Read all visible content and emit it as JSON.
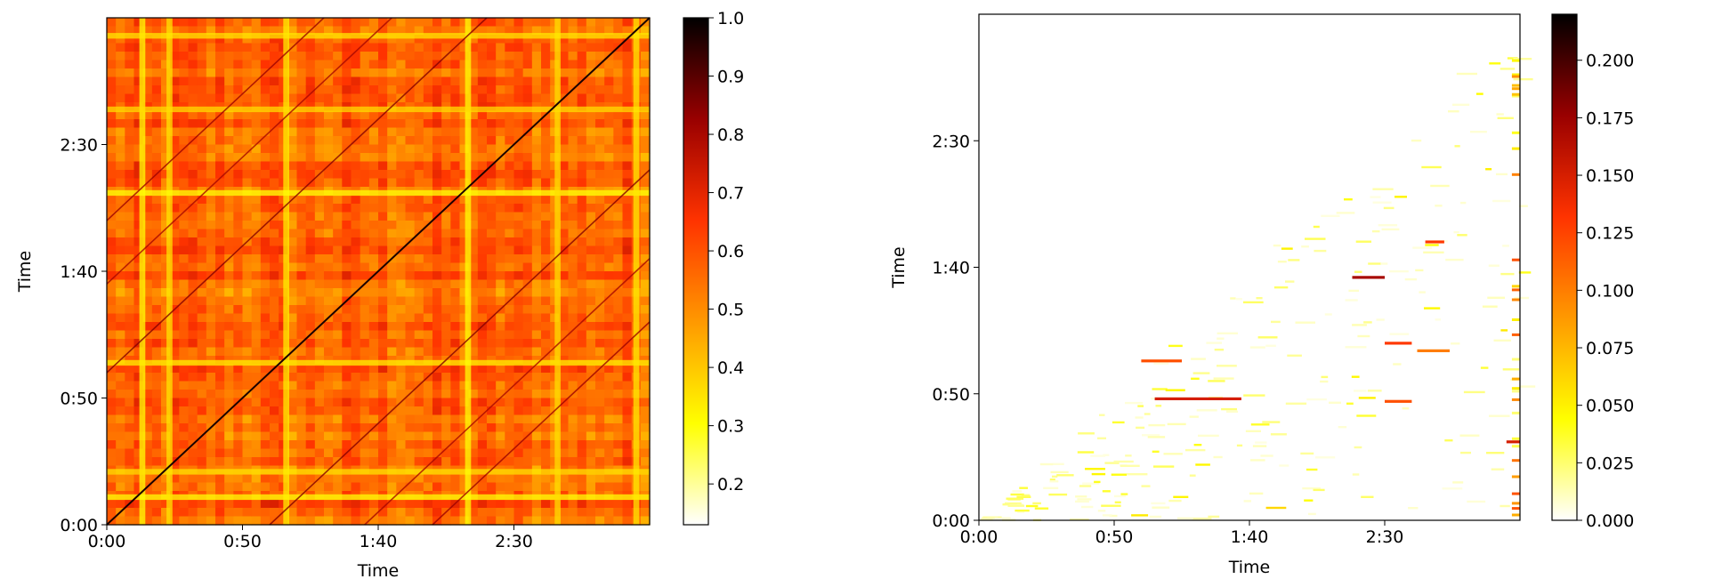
{
  "chart_data": [
    {
      "type": "heatmap",
      "title": "",
      "xlabel": "Time",
      "ylabel": "Time",
      "xlim": [
        0,
        200
      ],
      "ylim": [
        0,
        200
      ],
      "x_ticks": [
        {
          "value": 0,
          "label": "0:00"
        },
        {
          "value": 50,
          "label": "0:50"
        },
        {
          "value": 100,
          "label": "1:40"
        },
        {
          "value": 150,
          "label": "2:30"
        }
      ],
      "y_ticks": [
        {
          "value": 0,
          "label": "0:00"
        },
        {
          "value": 50,
          "label": "0:50"
        },
        {
          "value": 100,
          "label": "1:40"
        },
        {
          "value": 150,
          "label": "2:30"
        }
      ],
      "colorbar": {
        "min": 0.13,
        "max": 1.0,
        "ticks": [
          {
            "value": 0.2,
            "label": "0.2"
          },
          {
            "value": 0.3,
            "label": "0.3"
          },
          {
            "value": 0.4,
            "label": "0.4"
          },
          {
            "value": 0.5,
            "label": "0.5"
          },
          {
            "value": 0.6,
            "label": "0.6"
          },
          {
            "value": 0.7,
            "label": "0.7"
          },
          {
            "value": 0.8,
            "label": "0.8"
          },
          {
            "value": 0.9,
            "label": "0.9"
          },
          {
            "value": 1.0,
            "label": "1.0"
          }
        ]
      },
      "colormap": [
        "#ffffff",
        "#ffff00",
        "#ff9900",
        "#ff3300",
        "#990000",
        "#000000"
      ],
      "description": "self-similarity matrix, values ~0.5-0.7 with bright main diagonal"
    },
    {
      "type": "heatmap",
      "title": "",
      "xlabel": "Time",
      "ylabel": "Time",
      "xlim": [
        0,
        200
      ],
      "ylim": [
        0,
        200
      ],
      "x_ticks": [
        {
          "value": 0,
          "label": "0:00"
        },
        {
          "value": 50,
          "label": "0:50"
        },
        {
          "value": 100,
          "label": "1:40"
        },
        {
          "value": 150,
          "label": "2:30"
        }
      ],
      "y_ticks": [
        {
          "value": 0,
          "label": "0:00"
        },
        {
          "value": 50,
          "label": "0:50"
        },
        {
          "value": 100,
          "label": "1:40"
        },
        {
          "value": 150,
          "label": "2:30"
        }
      ],
      "colorbar": {
        "min": 0.0,
        "max": 0.22,
        "ticks": [
          {
            "value": 0.0,
            "label": "0.000"
          },
          {
            "value": 0.025,
            "label": "0.025"
          },
          {
            "value": 0.05,
            "label": "0.050"
          },
          {
            "value": 0.075,
            "label": "0.075"
          },
          {
            "value": 0.1,
            "label": "0.100"
          },
          {
            "value": 0.125,
            "label": "0.125"
          },
          {
            "value": 0.15,
            "label": "0.150"
          },
          {
            "value": 0.175,
            "label": "0.175"
          },
          {
            "value": 0.2,
            "label": "0.200"
          }
        ]
      },
      "colormap": [
        "#ffffff",
        "#ffff00",
        "#ff9900",
        "#ff3300",
        "#990000",
        "#000000"
      ],
      "highlights": [
        {
          "x0": 60,
          "x1": 75,
          "y": 63,
          "value": 0.12
        },
        {
          "x0": 65,
          "x1": 97,
          "y": 48,
          "value": 0.15
        },
        {
          "x0": 138,
          "x1": 150,
          "y": 96,
          "value": 0.17
        },
        {
          "x0": 150,
          "x1": 160,
          "y": 70,
          "value": 0.13
        },
        {
          "x0": 162,
          "x1": 174,
          "y": 67,
          "value": 0.1
        },
        {
          "x0": 165,
          "x1": 172,
          "y": 110,
          "value": 0.13
        },
        {
          "x0": 195,
          "x1": 200,
          "y": 31,
          "value": 0.15
        },
        {
          "x0": 150,
          "x1": 160,
          "y": 47,
          "value": 0.12
        }
      ]
    }
  ]
}
